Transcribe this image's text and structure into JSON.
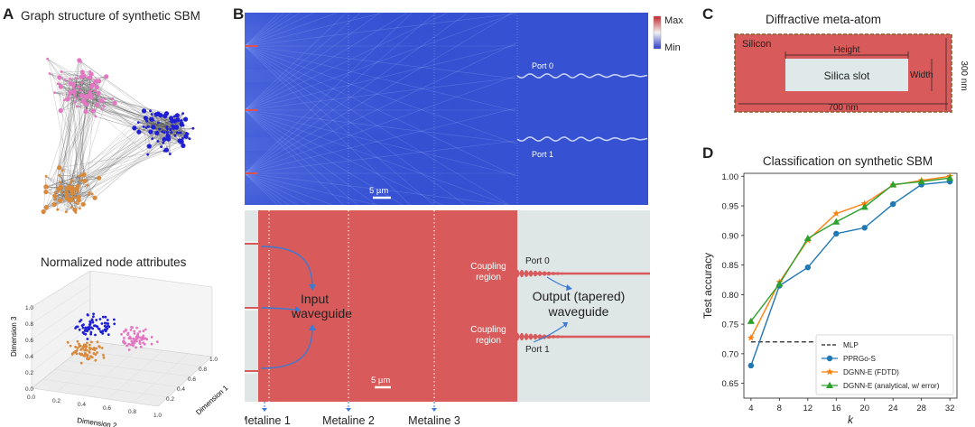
{
  "panels": {
    "A": {
      "label": "A",
      "title": "Graph structure of synthetic SBM",
      "subtitle": "Normalized node attributes",
      "axis_x": "Dimension 2",
      "axis_y": "Dimension 1",
      "axis_z": "Dimension 3",
      "ticks_x": [
        "0.0",
        "0.2",
        "0.4",
        "0.6",
        "0.8",
        "1.0"
      ],
      "ticks_z": [
        "0.0",
        "0.2",
        "0.4",
        "0.6",
        "0.8",
        "1.0"
      ],
      "ticks_y": [
        "0.2",
        "0.4",
        "0.6",
        "0.8",
        "1.0"
      ],
      "colors": {
        "pink": "#e377c2",
        "blue": "#1f1fd6",
        "orange": "#d8893a"
      }
    },
    "B": {
      "label": "B",
      "cb_max": "Max",
      "cb_min": "Min",
      "scale_top": "5 µm",
      "scale_bottom": "5 µm",
      "port0_top": "Port 0",
      "port1_top": "Port 1",
      "input_label": "Input\nwaveguide",
      "output_label": "Output (tapered)\nwaveguide",
      "coupling_top": "Coupling\nregion",
      "coupling_bottom": "Coupling\nregion",
      "port0_bottom": "Port 0",
      "port1_bottom": "Port 1",
      "metalines": [
        "Metaline 1",
        "Metaline 2",
        "Metaline 3"
      ]
    },
    "C": {
      "label": "C",
      "title": "Diffractive meta-atom",
      "silicon": "Silicon",
      "slot": "Silica slot",
      "height": "Height",
      "width": "Width",
      "dim_w": "700 nm",
      "dim_h": "300 nm"
    },
    "D": {
      "label": "D"
    }
  },
  "chart_data": {
    "type": "line",
    "title": "Classification on synthetic SBM",
    "xlabel": "k",
    "ylabel": "Test accuracy",
    "x": [
      4,
      8,
      12,
      16,
      20,
      24,
      28,
      32
    ],
    "xlim": [
      3,
      33
    ],
    "ylim": [
      0.625,
      1.005
    ],
    "yticks": [
      0.65,
      0.7,
      0.75,
      0.8,
      0.85,
      0.9,
      0.95,
      1.0
    ],
    "ytick_labels": [
      "0.65",
      "0.70",
      "0.75",
      "0.80",
      "0.85",
      "0.90",
      "0.95",
      "1.00"
    ],
    "legend_position": "lower-right",
    "baseline": {
      "name": "MLP",
      "value": 0.72,
      "color": "#222222",
      "style": "dashed"
    },
    "series": [
      {
        "name": "PPRGo-S",
        "color": "#1f77b4",
        "marker": "circle",
        "values": [
          0.68,
          0.815,
          0.846,
          0.903,
          0.913,
          0.953,
          0.986,
          0.991
        ]
      },
      {
        "name": "DGNN-E (FDTD)",
        "color": "#ff7f0e",
        "marker": "star",
        "values": [
          0.727,
          0.821,
          0.892,
          0.937,
          0.954,
          0.985,
          0.993,
          1.0
        ]
      },
      {
        "name": "DGNN-E (analytical, w/ error)",
        "color": "#2ca02c",
        "marker": "triangle",
        "values": [
          0.755,
          0.818,
          0.895,
          0.923,
          0.948,
          0.986,
          0.991,
          0.997
        ]
      }
    ]
  }
}
